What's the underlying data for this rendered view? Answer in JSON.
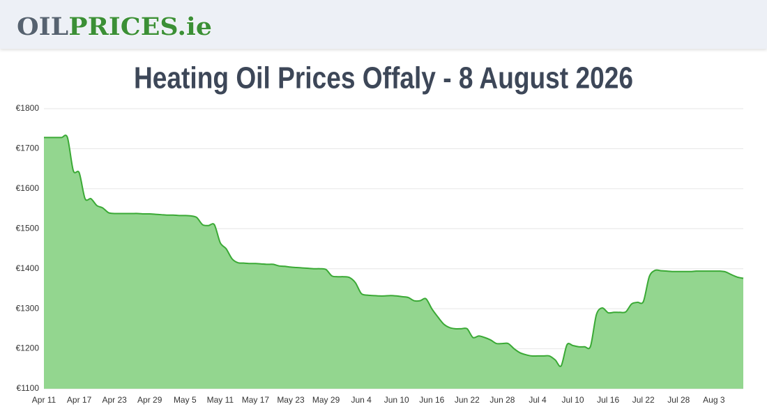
{
  "header": {
    "logo": {
      "part1": "OIL",
      "part2": "PRICES.ie"
    }
  },
  "chart_data": {
    "type": "area",
    "title": "Heating Oil Prices Offaly - 8 August 2026",
    "categories": [
      "Apr 11",
      null,
      null,
      null,
      null,
      null,
      "Apr 17",
      null,
      null,
      null,
      null,
      null,
      "Apr 23",
      null,
      null,
      null,
      null,
      null,
      "Apr 29",
      null,
      null,
      null,
      null,
      null,
      "May 5",
      null,
      null,
      null,
      null,
      null,
      "May 11",
      null,
      null,
      null,
      null,
      null,
      "May 17",
      null,
      null,
      null,
      null,
      null,
      "May 23",
      null,
      null,
      null,
      null,
      null,
      "May 29",
      null,
      null,
      null,
      null,
      null,
      "Jun 4",
      null,
      null,
      null,
      null,
      null,
      "Jun 10",
      null,
      null,
      null,
      null,
      null,
      "Jun 16",
      null,
      null,
      null,
      null,
      null,
      "Jun 22",
      null,
      null,
      null,
      null,
      null,
      "Jun 28",
      null,
      null,
      null,
      null,
      null,
      "Jul 4",
      null,
      null,
      null,
      null,
      null,
      "Jul 10",
      null,
      null,
      null,
      null,
      null,
      "Jul 16",
      null,
      null,
      null,
      null,
      null,
      "Jul 22",
      null,
      null,
      null,
      null,
      null,
      "Jul 28",
      null,
      null,
      null,
      null,
      null,
      "Aug 3",
      null,
      null,
      null,
      null,
      null
    ],
    "values": [
      1728,
      1728,
      1728,
      1728,
      1728,
      1645,
      1640,
      1575,
      1575,
      1558,
      1552,
      1540,
      1538,
      1538,
      1538,
      1538,
      1538,
      1537,
      1537,
      1536,
      1535,
      1534,
      1534,
      1533,
      1533,
      1532,
      1528,
      1510,
      1508,
      1510,
      1465,
      1450,
      1425,
      1415,
      1414,
      1413,
      1413,
      1412,
      1411,
      1411,
      1407,
      1406,
      1404,
      1403,
      1402,
      1401,
      1400,
      1400,
      1398,
      1382,
      1380,
      1380,
      1378,
      1365,
      1338,
      1334,
      1333,
      1332,
      1332,
      1333,
      1332,
      1330,
      1328,
      1320,
      1320,
      1325,
      1300,
      1280,
      1262,
      1253,
      1250,
      1250,
      1250,
      1228,
      1232,
      1228,
      1222,
      1213,
      1213,
      1213,
      1200,
      1190,
      1185,
      1182,
      1182,
      1182,
      1182,
      1172,
      1157,
      1210,
      1208,
      1205,
      1205,
      1206,
      1285,
      1302,
      1290,
      1291,
      1291,
      1292,
      1312,
      1316,
      1318,
      1380,
      1396,
      1395,
      1394,
      1393,
      1393,
      1393,
      1393,
      1394,
      1394,
      1394,
      1394,
      1394,
      1392,
      1385,
      1379,
      1376
    ],
    "color": "#3aa935",
    "fill": "#93d68f",
    "ylim": [
      1100,
      1800
    ],
    "yticks": [
      {
        "value": 1100,
        "label": "€1100"
      },
      {
        "value": 1200,
        "label": "€1200"
      },
      {
        "value": 1300,
        "label": "€1300"
      },
      {
        "value": 1400,
        "label": "€1400"
      },
      {
        "value": 1500,
        "label": "€1500"
      },
      {
        "value": 1600,
        "label": "€1600"
      },
      {
        "value": 1700,
        "label": "€1700"
      },
      {
        "value": 1800,
        "label": "€1800"
      }
    ],
    "grid": true
  }
}
